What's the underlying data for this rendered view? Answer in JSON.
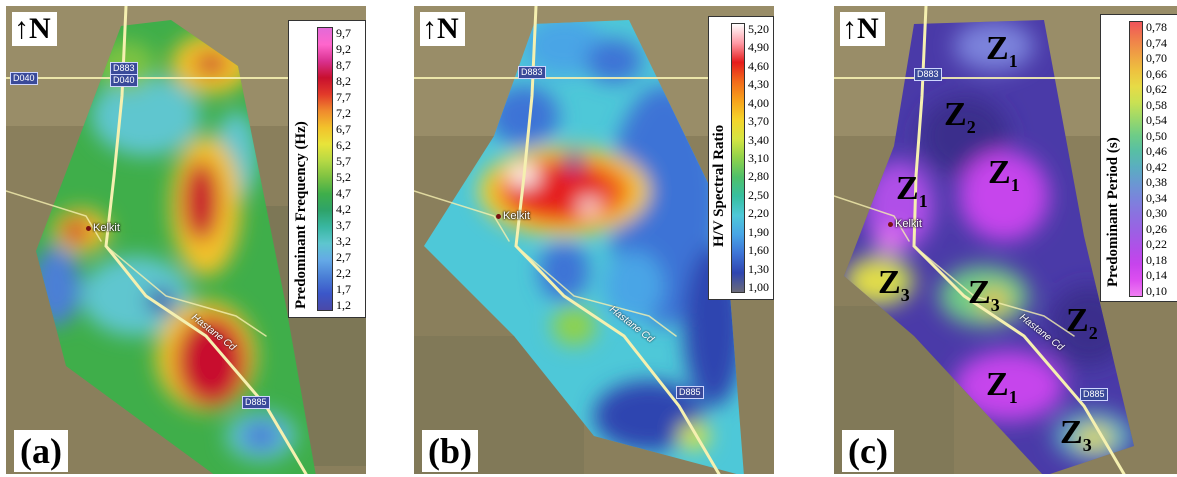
{
  "north_label": "N",
  "panels": [
    {
      "id": "a",
      "label": "(a)",
      "legend_title": "Predominant Frequency (Hz)",
      "legend_ticks": [
        "9,7",
        "9,2",
        "8,7",
        "8,2",
        "7,7",
        "7,2",
        "6,7",
        "6,2",
        "5,7",
        "5,2",
        "4,7",
        "4,2",
        "3,7",
        "3,2",
        "2,7",
        "2,2",
        "1,7",
        "1,2"
      ],
      "legend_colors": [
        "#e36ad8",
        "#ff66cc",
        "#d9318f",
        "#c8102e",
        "#e23a2a",
        "#ef8a2d",
        "#f2c22b",
        "#e8e43a",
        "#b6d944",
        "#7dc242",
        "#3fae4a",
        "#2ea36a",
        "#39b7a2",
        "#5ec6cf",
        "#64a9e6",
        "#4b7fd6",
        "#3b57c9",
        "#4a49a8"
      ],
      "roads": {
        "d040": "D040",
        "d883": "D883",
        "d885": "D885"
      },
      "town": "Kelkit",
      "street": "Hastane Cd"
    },
    {
      "id": "b",
      "label": "(b)",
      "legend_title": "H/V Spectral Ratio",
      "legend_ticks": [
        "5,20",
        "4,90",
        "4,60",
        "4,30",
        "4,00",
        "3,70",
        "3,40",
        "3,10",
        "2,80",
        "2,50",
        "2,20",
        "1,90",
        "1,60",
        "1,30",
        "1,00"
      ],
      "legend_colors": [
        "#ffffff",
        "#ff9aa5",
        "#e51c1c",
        "#f26a1b",
        "#f7a21b",
        "#f5d42a",
        "#d6e542",
        "#8fd24b",
        "#4fc06a",
        "#36bfa0",
        "#4ec8d8",
        "#48a5e6",
        "#3d73d6",
        "#2f45b0",
        "#6a6a7a"
      ],
      "roads": {
        "d883": "D883",
        "d885": "D885"
      },
      "town": "Kelkit",
      "street": "Hastane Cd"
    },
    {
      "id": "c",
      "label": "(c)",
      "legend_title": "Predominant Period (s)",
      "legend_ticks": [
        "0,78",
        "0,74",
        "0,70",
        "0,66",
        "0,62",
        "0,58",
        "0,54",
        "0,50",
        "0,46",
        "0,42",
        "0,38",
        "0,34",
        "0,30",
        "0,26",
        "0,22",
        "0,18",
        "0,14",
        "0,10"
      ],
      "legend_colors": [
        "#f0545a",
        "#f07c4c",
        "#efa044",
        "#eec13f",
        "#e7db46",
        "#c9e153",
        "#9bd86a",
        "#6fcd86",
        "#58bfa4",
        "#5aaec0",
        "#6a98d2",
        "#7b83dc",
        "#8c70e0",
        "#9c60e4",
        "#b050e8",
        "#c644ec",
        "#dc4ef0",
        "#f07ef2"
      ],
      "roads": {
        "d883": "D883",
        "d885": "D885"
      },
      "town": "Kelkit",
      "street": "Hastane Cd",
      "zones": [
        {
          "letter": "Z",
          "index": "1"
        },
        {
          "letter": "Z",
          "index": "2"
        },
        {
          "letter": "Z",
          "index": "1"
        },
        {
          "letter": "Z",
          "index": "1"
        },
        {
          "letter": "Z",
          "index": "3"
        },
        {
          "letter": "Z",
          "index": "3"
        },
        {
          "letter": "Z",
          "index": "2"
        },
        {
          "letter": "Z",
          "index": "1"
        },
        {
          "letter": "Z",
          "index": "3"
        }
      ]
    }
  ]
}
